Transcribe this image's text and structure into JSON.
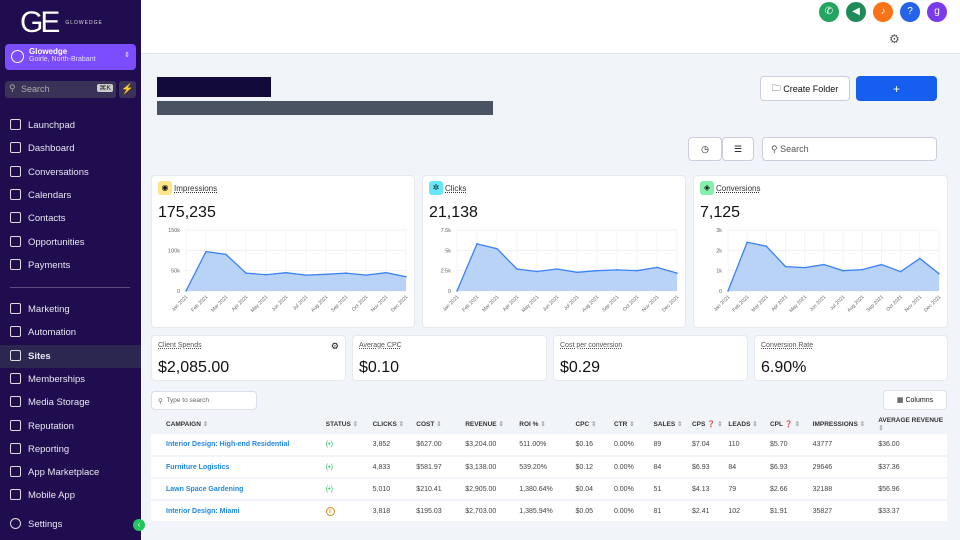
{
  "brand": {
    "logo": "GE",
    "name": "GLOWEDGE"
  },
  "account": {
    "name": "Glowedge",
    "location": "Goirle, North-Brabant"
  },
  "sidebar": {
    "search_placeholder": "Search",
    "shortcut": "⌘K",
    "items": [
      {
        "label": "Launchpad"
      },
      {
        "label": "Dashboard"
      },
      {
        "label": "Conversations"
      },
      {
        "label": "Calendars"
      },
      {
        "label": "Contacts"
      },
      {
        "label": "Opportunities"
      },
      {
        "label": "Payments"
      }
    ],
    "items2": [
      {
        "label": "Marketing"
      },
      {
        "label": "Automation"
      },
      {
        "label": "Sites",
        "active": true
      },
      {
        "label": "Memberships"
      },
      {
        "label": "Media Storage"
      },
      {
        "label": "Reputation"
      },
      {
        "label": "Reporting"
      },
      {
        "label": "App Marketplace"
      },
      {
        "label": "Mobile App"
      }
    ],
    "settings": "Settings"
  },
  "topbar": {
    "icons": [
      {
        "name": "phone",
        "color": "#22a55e"
      },
      {
        "name": "megaphone",
        "color": "#1f8a5a"
      },
      {
        "name": "bell",
        "color": "#f97316"
      },
      {
        "name": "help",
        "color": "#2563eb"
      },
      {
        "name": "avatar",
        "color": "#7c3aed"
      }
    ]
  },
  "toolbar": {
    "create_folder": "Create Folder",
    "add": "+",
    "search_placeholder": "Search"
  },
  "charts": {
    "months": [
      "Jan 2021",
      "Feb 2021",
      "Mar 2021",
      "Apr 2021",
      "May 2021",
      "Jun 2021",
      "Jul 2021",
      "Aug 2021",
      "Sep 2021",
      "Oct 2021",
      "Nov 2021",
      "Dec 2021"
    ]
  },
  "chart_data": [
    {
      "type": "area",
      "title": "Impressions",
      "total": "175,235",
      "yticks": [
        "0",
        "50k",
        "100k",
        "150k"
      ],
      "ylim": [
        0,
        150000
      ],
      "values": [
        0,
        97000,
        90000,
        44000,
        40000,
        45000,
        39000,
        41000,
        44000,
        39000,
        45000,
        35000
      ]
    },
    {
      "type": "area",
      "title": "Clicks",
      "total": "21,138",
      "yticks": [
        "0",
        "2.5k",
        "5k",
        "7.5k"
      ],
      "ylim": [
        0,
        7500
      ],
      "values": [
        0,
        5800,
        5200,
        2700,
        2400,
        2700,
        2300,
        2500,
        2600,
        2500,
        2900,
        2200
      ]
    },
    {
      "type": "area",
      "title": "Conversions",
      "total": "7,125",
      "yticks": [
        "0",
        "1k",
        "2k",
        "3k"
      ],
      "ylim": [
        0,
        3000
      ],
      "values": [
        0,
        2400,
        2200,
        1200,
        1150,
        1300,
        1000,
        1050,
        1300,
        950,
        1600,
        850
      ]
    }
  ],
  "metrics": [
    {
      "label": "Client Spends",
      "value": "$2,085.00"
    },
    {
      "label": "Average CPC",
      "value": "$0.10"
    },
    {
      "label": "Cost per conversion",
      "value": "$0.29"
    },
    {
      "label": "Conversion Rate",
      "value": "6.90%"
    }
  ],
  "table": {
    "search_placeholder": "Type to search",
    "columns_label": "Columns",
    "headers": [
      "CAMPAIGN",
      "STATUS",
      "CLICKS",
      "COST",
      "REVENUE",
      "ROI %",
      "CPC",
      "CTR",
      "SALES",
      "CPS",
      "LEADS",
      "CPL",
      "IMPRESSIONS",
      "AVERAGE REVENUE"
    ],
    "rows": [
      [
        "Interior Design: High-end Residential",
        "active",
        "3,852",
        "$627.00",
        "$3,204.00",
        "511.00%",
        "$0.16",
        "0.00%",
        "89",
        "$7.04",
        "110",
        "$5.70",
        "43777",
        "$36.00"
      ],
      [
        "Furniture Logistics",
        "active",
        "4,833",
        "$581.97",
        "$3,138.00",
        "539.20%",
        "$0.12",
        "0.00%",
        "84",
        "$6.93",
        "84",
        "$6.93",
        "29646",
        "$37.36"
      ],
      [
        "Lawn Space Gardening",
        "active",
        "5,010",
        "$210.41",
        "$2,905.00",
        "1,380.64%",
        "$0.04",
        "0.00%",
        "51",
        "$4.13",
        "79",
        "$2.66",
        "32188",
        "$56.96"
      ],
      [
        "Interior Design: Miami",
        "paused",
        "3,818",
        "$195.03",
        "$2,703.00",
        "1,385.94%",
        "$0.05",
        "0.00%",
        "81",
        "$2.41",
        "102",
        "$1.91",
        "35827",
        "$33.37"
      ]
    ]
  }
}
